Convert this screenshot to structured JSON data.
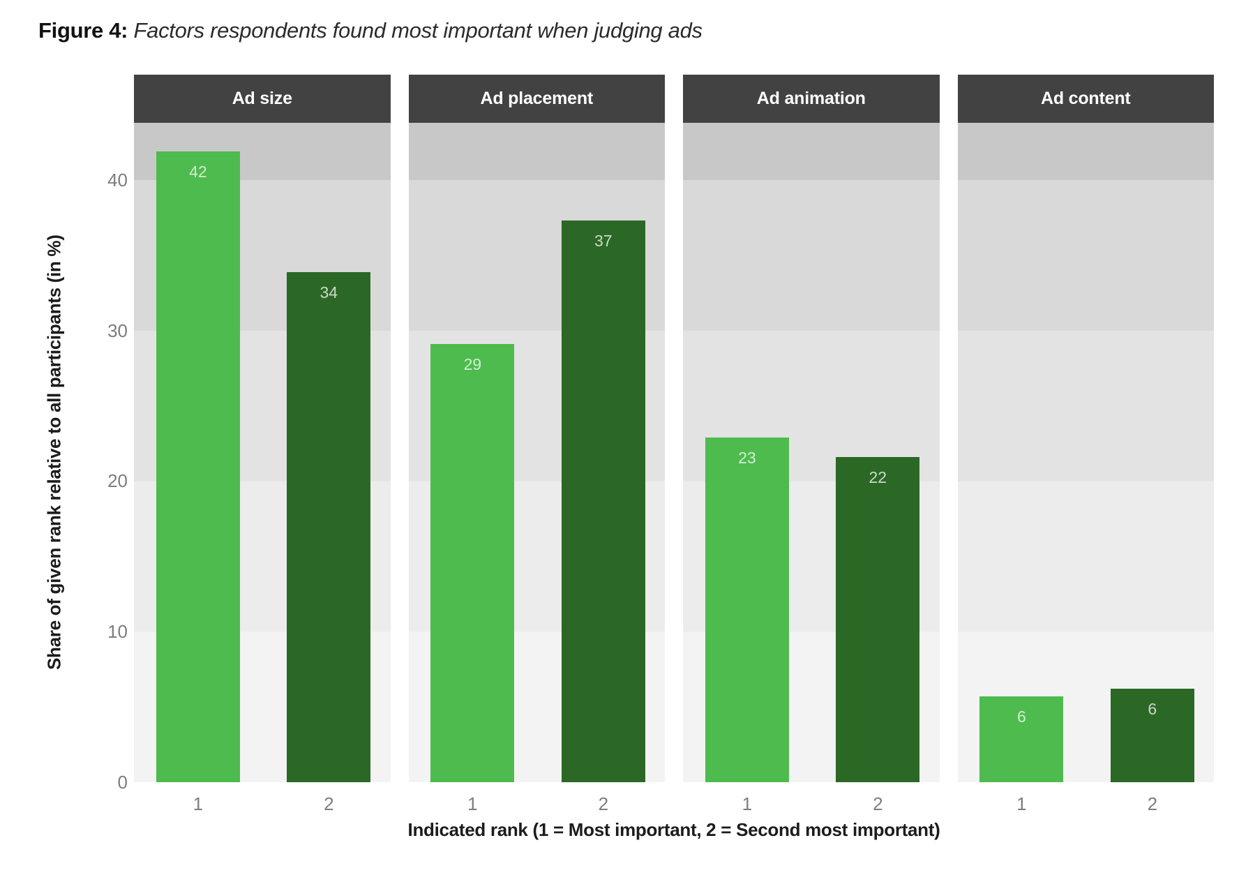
{
  "figure": {
    "label": "Figure 4:",
    "subtitle": "Factors respondents found most important when judging ads"
  },
  "chart_data": {
    "type": "bar",
    "title": "Figure 4: Factors respondents found most important when judging ads",
    "xlabel": "Indicated rank (1 = Most important, 2 = Second most important)",
    "ylabel": "Share of given rank relative to all participants (in %)",
    "categories": [
      "1",
      "2"
    ],
    "facets": [
      {
        "label": "Ad size",
        "values": [
          42,
          34
        ],
        "plotted": [
          41.9,
          33.9
        ]
      },
      {
        "label": "Ad placement",
        "values": [
          29,
          37
        ],
        "plotted": [
          29.1,
          37.3
        ]
      },
      {
        "label": "Ad animation",
        "values": [
          23,
          22
        ],
        "plotted": [
          22.9,
          21.6
        ]
      },
      {
        "label": "Ad content",
        "values": [
          6,
          6
        ],
        "plotted": [
          5.7,
          6.2
        ]
      }
    ],
    "yticks": [
      0,
      10,
      20,
      30,
      40
    ],
    "ylim": [
      0,
      43.8
    ],
    "legend": "none",
    "grid": "banded-background",
    "colors": {
      "rank_1_bar": "#4ebb4e",
      "rank_2_bar": "#2c6825",
      "facet_header_bg": "#424242",
      "facet_header_text": "#ffffff",
      "panel_bands_top_to_bottom": [
        "#c8c8c8",
        "#d9d9d9",
        "#e3e3e3",
        "#ececec",
        "#f3f3f3"
      ],
      "bar_value_text": "rgba(255,255,255,0.75)",
      "tick_text": "#7d7d7d",
      "axis_title_text": "#1c1c1c"
    }
  }
}
